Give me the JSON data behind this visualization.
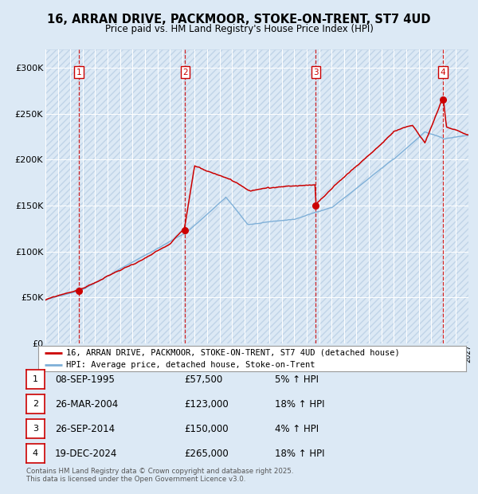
{
  "title_line1": "16, ARRAN DRIVE, PACKMOOR, STOKE-ON-TRENT, ST7 4UD",
  "title_line2": "Price paid vs. HM Land Registry's House Price Index (HPI)",
  "ylim": [
    0,
    320000
  ],
  "yticks": [
    0,
    50000,
    100000,
    150000,
    200000,
    250000,
    300000
  ],
  "ytick_labels": [
    "£0",
    "£50K",
    "£100K",
    "£150K",
    "£200K",
    "£250K",
    "£300K"
  ],
  "sale_dates_num": [
    1995.685,
    2004.233,
    2014.736,
    2024.966
  ],
  "sale_prices": [
    57500,
    123000,
    150000,
    265000
  ],
  "sale_labels": [
    "1",
    "2",
    "3",
    "4"
  ],
  "sale_notes": [
    "08-SEP-1995",
    "26-MAR-2004",
    "26-SEP-2014",
    "19-DEC-2024"
  ],
  "sale_prices_str": [
    "£57,500",
    "£123,000",
    "£150,000",
    "£265,000"
  ],
  "sale_pct": [
    "5% ↑ HPI",
    "18% ↑ HPI",
    "4% ↑ HPI",
    "18% ↑ HPI"
  ],
  "legend_label_red": "16, ARRAN DRIVE, PACKMOOR, STOKE-ON-TRENT, ST7 4UD (detached house)",
  "legend_label_blue": "HPI: Average price, detached house, Stoke-on-Trent",
  "footer": "Contains HM Land Registry data © Crown copyright and database right 2025.\nThis data is licensed under the Open Government Licence v3.0.",
  "red_line_color": "#cc0000",
  "blue_line_color": "#7fb0d8",
  "xmin": 1993,
  "xmax": 2027
}
